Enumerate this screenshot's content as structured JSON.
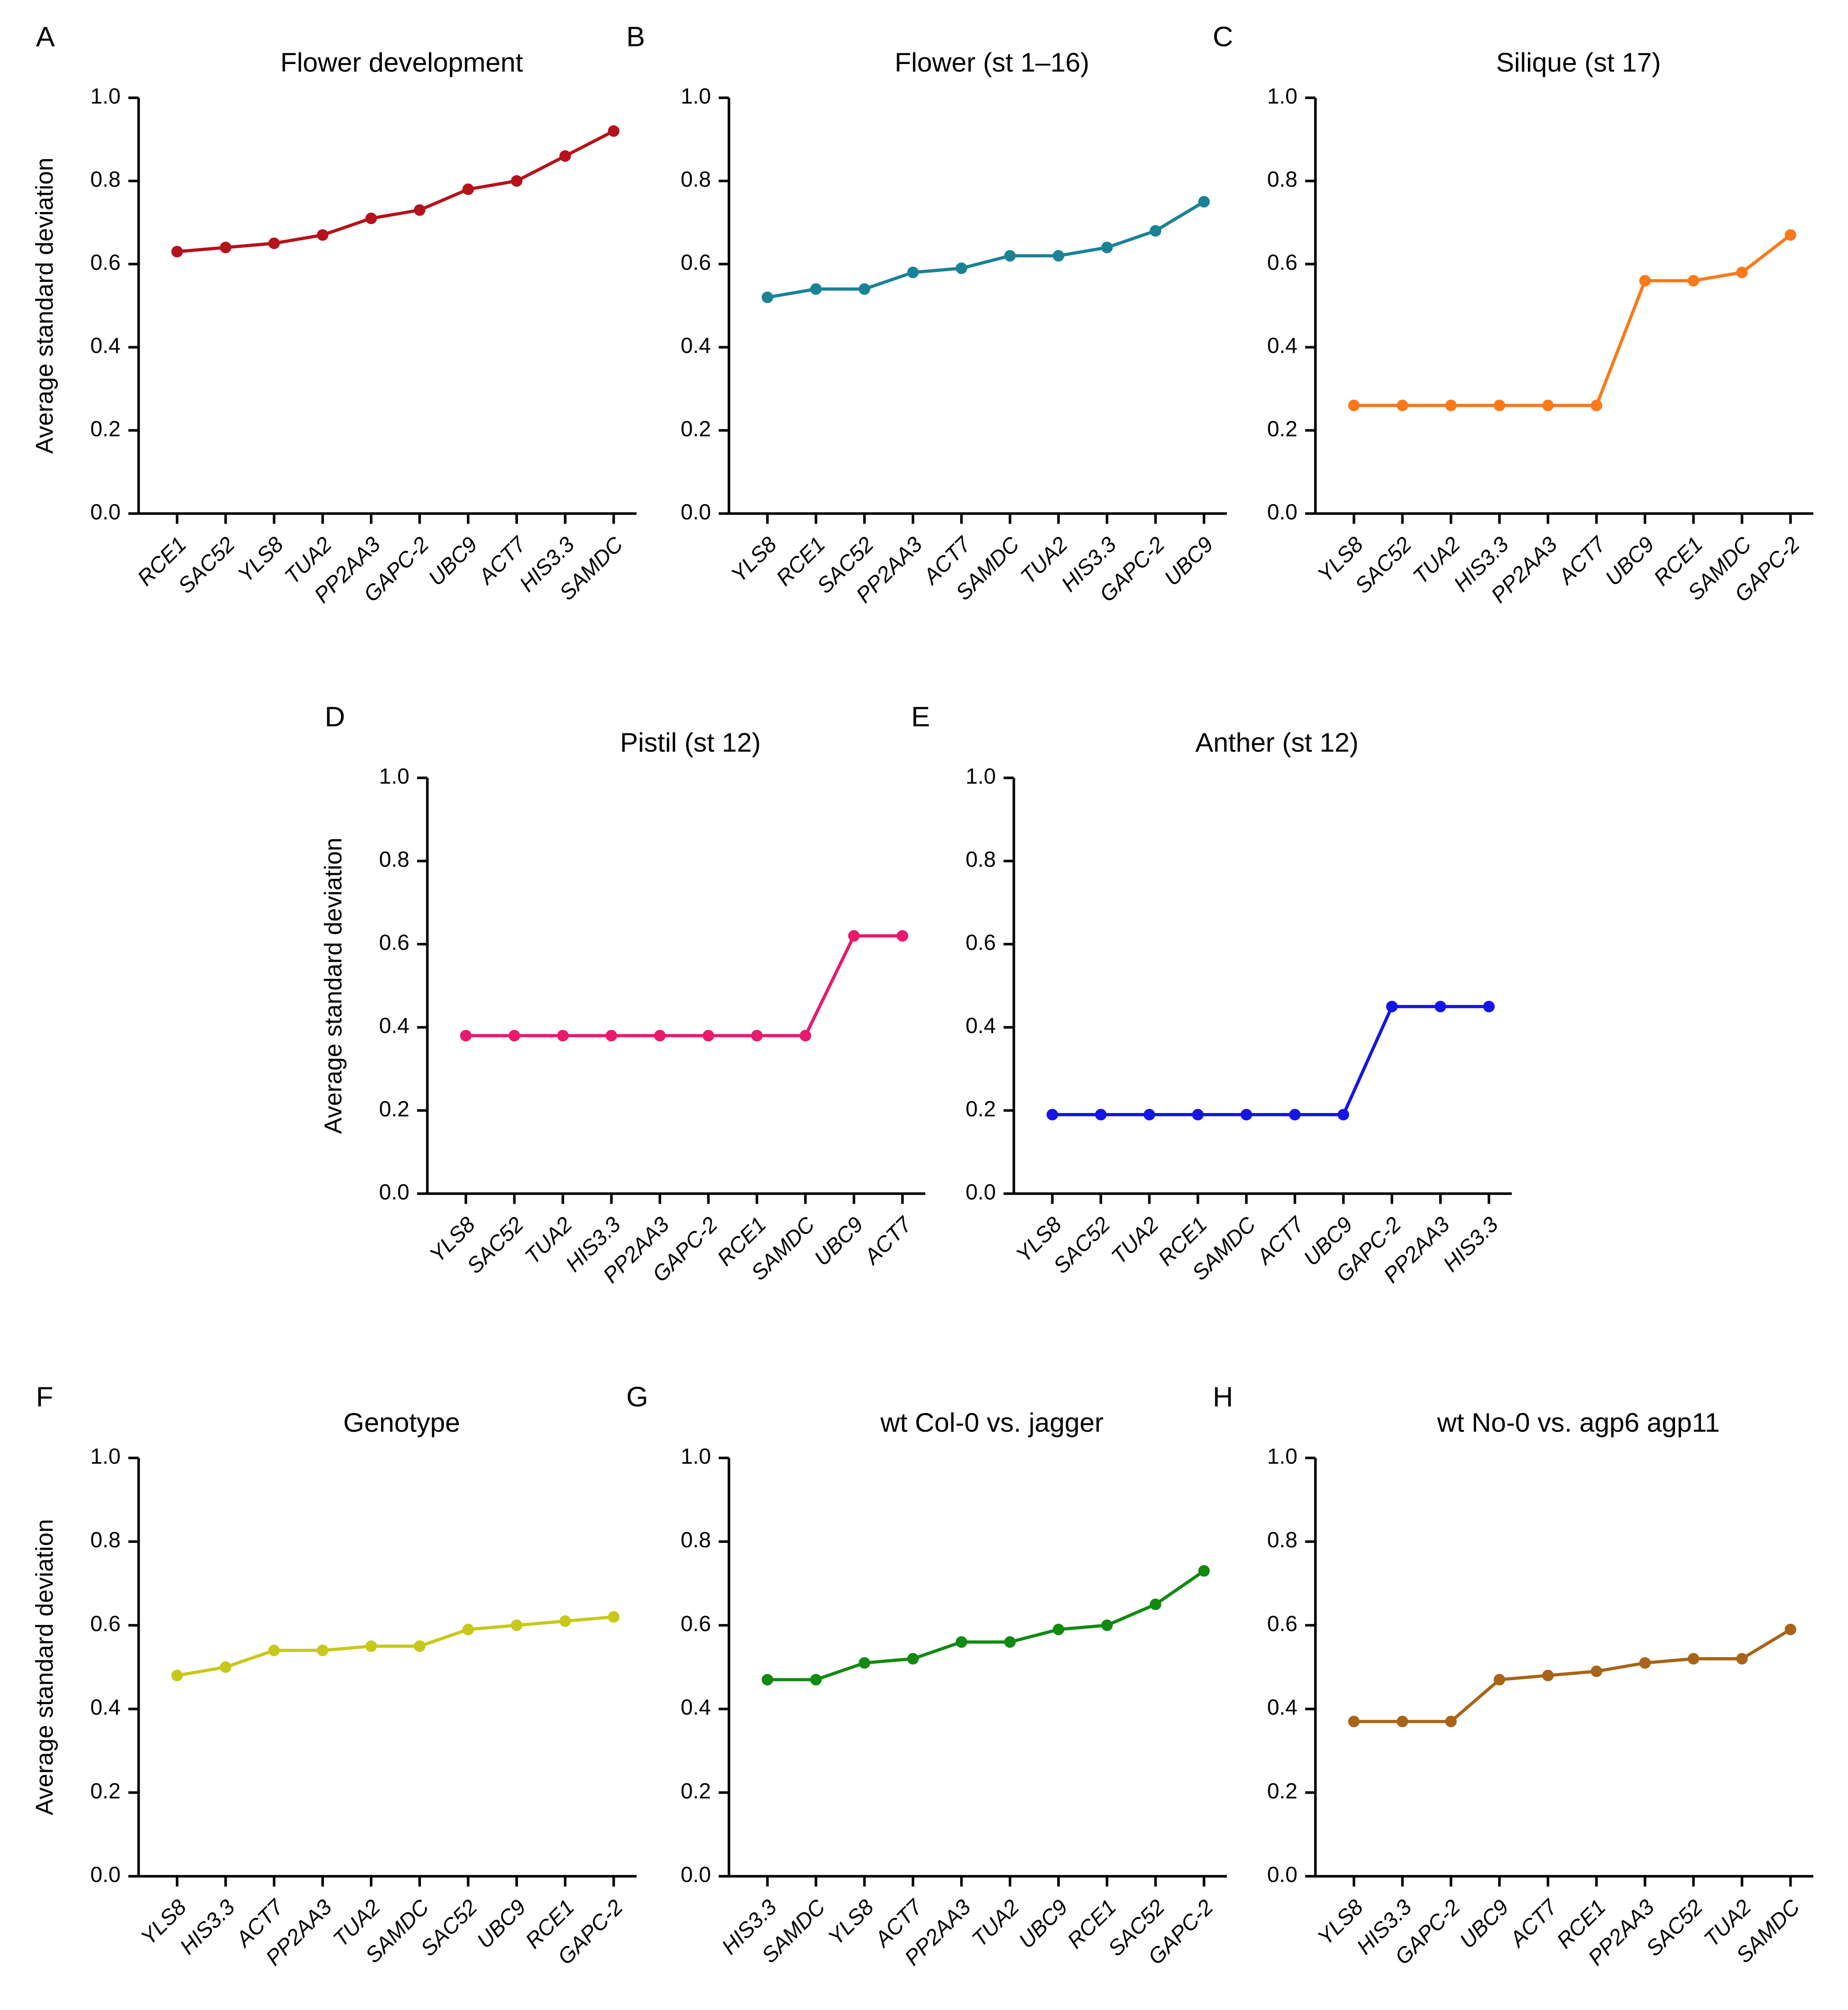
{
  "chart_data": [
    {
      "type": "line",
      "panel": "A",
      "title": "Flower development",
      "ylabel": "Average standard deviation",
      "categories": [
        "RCE1",
        "SAC52",
        "YLS8",
        "TUA2",
        "PP2AA3",
        "GAPC-2",
        "UBC9",
        "ACT7",
        "HIS3.3",
        "SAMDC"
      ],
      "values": [
        0.63,
        0.64,
        0.65,
        0.67,
        0.71,
        0.73,
        0.78,
        0.8,
        0.86,
        0.92
      ],
      "color": "#b5121b",
      "ylim": [
        0,
        1
      ],
      "yticks": [
        {
          "value": 0,
          "label": "0.0"
        },
        0.2,
        0.4,
        0.6,
        0.8,
        {
          "value": 1,
          "label": "1.0"
        }
      ]
    },
    {
      "type": "line",
      "panel": "B",
      "title": "Flower (st 1–16)",
      "categories": [
        "YLS8",
        "RCE1",
        "SAC52",
        "PP2AA3",
        "ACT7",
        "SAMDC",
        "TUA2",
        "HIS3.3",
        "GAPC-2",
        "UBC9"
      ],
      "values": [
        0.52,
        0.54,
        0.54,
        0.58,
        0.59,
        0.62,
        0.62,
        0.64,
        0.68,
        0.75
      ],
      "color": "#1a8296",
      "ylim": [
        0,
        1
      ],
      "yticks": [
        {
          "value": 0,
          "label": "0.0"
        },
        0.2,
        0.4,
        0.6,
        0.8,
        {
          "value": 1,
          "label": "1.0"
        }
      ]
    },
    {
      "type": "line",
      "panel": "C",
      "title": "Silique (st 17)",
      "categories": [
        "YLS8",
        "SAC52",
        "TUA2",
        "HIS3.3",
        "PP2AA3",
        "ACT7",
        "UBC9",
        "RCE1",
        "SAMDC",
        "GAPC-2"
      ],
      "values": [
        0.26,
        0.26,
        0.26,
        0.26,
        0.26,
        0.26,
        0.56,
        0.56,
        0.58,
        0.67
      ],
      "color": "#f87a1a",
      "ylim": [
        0,
        1
      ],
      "yticks": [
        {
          "value": 0,
          "label": "0.0"
        },
        0.2,
        0.4,
        0.6,
        0.8,
        {
          "value": 1,
          "label": "1.0"
        }
      ]
    },
    {
      "type": "line",
      "panel": "D",
      "title": "Pistil (st 12)",
      "ylabel": "Average standard deviation",
      "categories": [
        "YLS8",
        "SAC52",
        "TUA2",
        "HIS3.3",
        "PP2AA3",
        "GAPC-2",
        "RCE1",
        "SAMDC",
        "UBC9",
        "ACT7"
      ],
      "values": [
        0.38,
        0.38,
        0.38,
        0.38,
        0.38,
        0.38,
        0.38,
        0.38,
        0.62,
        0.62
      ],
      "color": "#e8196e",
      "ylim": [
        0,
        1
      ],
      "yticks": [
        {
          "value": 0,
          "label": "0.0"
        },
        0.2,
        0.4,
        0.6,
        0.8,
        {
          "value": 1,
          "label": "1.0"
        }
      ]
    },
    {
      "type": "line",
      "panel": "E",
      "title": "Anther (st 12)",
      "categories": [
        "YLS8",
        "SAC52",
        "TUA2",
        "RCE1",
        "SAMDC",
        "ACT7",
        "UBC9",
        "GAPC-2",
        "PP2AA3",
        "HIS3.3"
      ],
      "values": [
        0.19,
        0.19,
        0.19,
        0.19,
        0.19,
        0.19,
        0.19,
        0.45,
        0.45,
        0.45
      ],
      "color": "#1515e8",
      "ylim": [
        0,
        1
      ],
      "yticks": [
        {
          "value": 0,
          "label": "0.0"
        },
        0.2,
        0.4,
        0.6,
        0.8,
        {
          "value": 1,
          "label": "1.0"
        }
      ]
    },
    {
      "type": "line",
      "panel": "F",
      "title": "Genotype",
      "ylabel": "Average standard deviation",
      "categories": [
        "YLS8",
        "HIS3.3",
        "ACT7",
        "PP2AA3",
        "TUA2",
        "SAMDC",
        "SAC52",
        "UBC9",
        "RCE1",
        "GAPC-2"
      ],
      "values": [
        0.48,
        0.5,
        0.54,
        0.54,
        0.55,
        0.55,
        0.59,
        0.6,
        0.61,
        0.62
      ],
      "color": "#c8c81a",
      "ylim": [
        0,
        1
      ],
      "yticks": [
        {
          "value": 0,
          "label": "0.0"
        },
        0.2,
        0.4,
        0.6,
        0.8,
        {
          "value": 1,
          "label": "1.0"
        }
      ]
    },
    {
      "type": "line",
      "panel": "G",
      "title": "wt Col-0 vs. jagger",
      "categories": [
        "HIS3.3",
        "SAMDC",
        "YLS8",
        "ACT7",
        "PP2AA3",
        "TUA2",
        "UBC9",
        "RCE1",
        "SAC52",
        "GAPC-2"
      ],
      "values": [
        0.47,
        0.47,
        0.51,
        0.52,
        0.56,
        0.56,
        0.59,
        0.6,
        0.65,
        0.73
      ],
      "color": "#118a11",
      "ylim": [
        0,
        1
      ],
      "yticks": [
        {
          "value": 0,
          "label": "0.0"
        },
        0.2,
        0.4,
        0.6,
        0.8,
        {
          "value": 1,
          "label": "1.0"
        }
      ]
    },
    {
      "type": "line",
      "panel": "H",
      "title": "wt No-0 vs. agp6 agp11",
      "categories": [
        "YLS8",
        "HIS3.3",
        "GAPC-2",
        "UBC9",
        "ACT7",
        "RCE1",
        "PP2AA3",
        "SAC52",
        "TUA2",
        "SAMDC"
      ],
      "values": [
        0.37,
        0.37,
        0.37,
        0.47,
        0.48,
        0.49,
        0.51,
        0.52,
        0.52,
        0.59
      ],
      "color": "#a86418",
      "ylim": [
        0,
        1
      ],
      "yticks": [
        {
          "value": 0,
          "label": "0.0"
        },
        0.2,
        0.4,
        0.6,
        0.8,
        {
          "value": 1,
          "label": "1.0"
        }
      ]
    }
  ]
}
